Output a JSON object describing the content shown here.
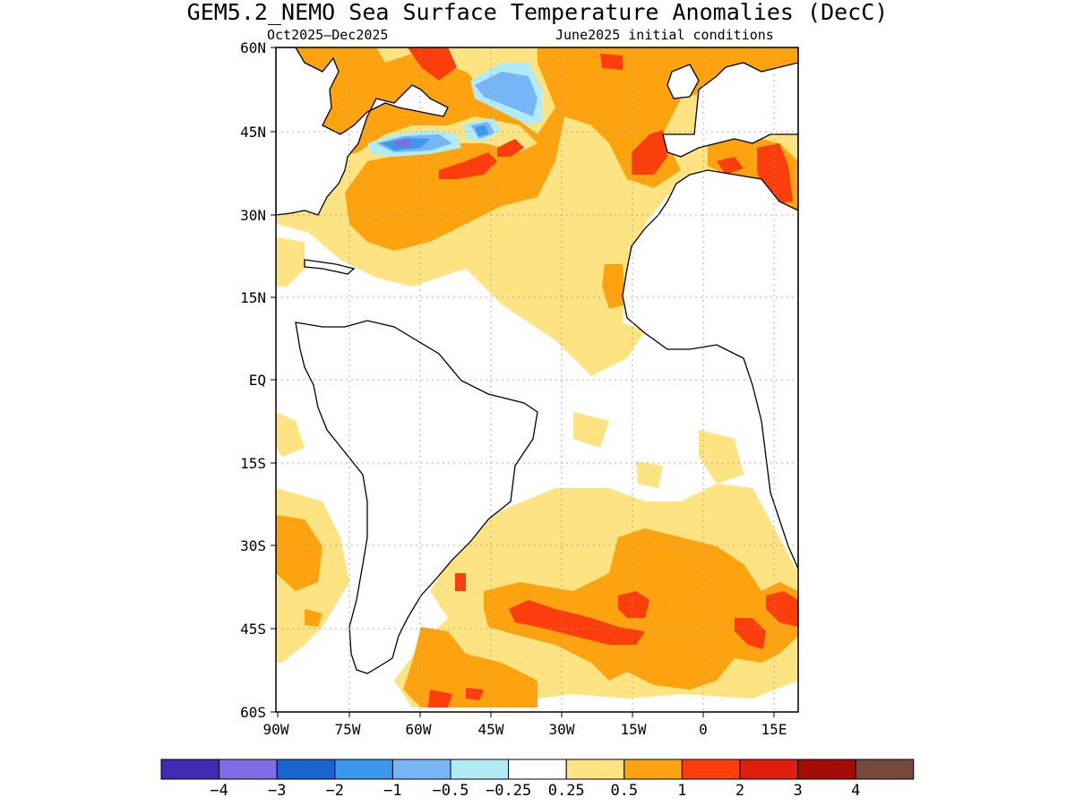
{
  "title": "GEM5.2_NEMO Sea Surface Temperature Anomalies (DecC)",
  "subtitle_left": "Oct2025–Dec2025",
  "subtitle_right": "June2025 initial conditions",
  "lat_labels": [
    "60N",
    "45N",
    "30N",
    "15N",
    "EQ",
    "15S",
    "30S",
    "45S",
    "60S"
  ],
  "lon_labels": [
    "90W",
    "75W",
    "60W",
    "45W",
    "30W",
    "15W",
    "0",
    "15E"
  ],
  "colorbar": {
    "colors": [
      "#3e2cb3",
      "#7e6ee6",
      "#1a64d1",
      "#3c97ee",
      "#76b6f7",
      "#b1ecf6",
      "#ffffff",
      "#fde382",
      "#fca30f",
      "#fc3e0d",
      "#e01e0e",
      "#a50c06",
      "#77483e"
    ],
    "labels": [
      "-4",
      "-3",
      "-2",
      "-1",
      "-0.5",
      "-0.25",
      "0.25",
      "0.5",
      "1",
      "2",
      "3",
      "4"
    ]
  },
  "anomaly_colors": {
    "weak_warm": "#fde382",
    "warm": "#fca30f",
    "strong_warm": "#fc3e0d",
    "weak_cool": "#b1ecf6",
    "cool": "#76b6f7",
    "cooler": "#3c97ee",
    "strong_cool": "#7e6ee6"
  }
}
